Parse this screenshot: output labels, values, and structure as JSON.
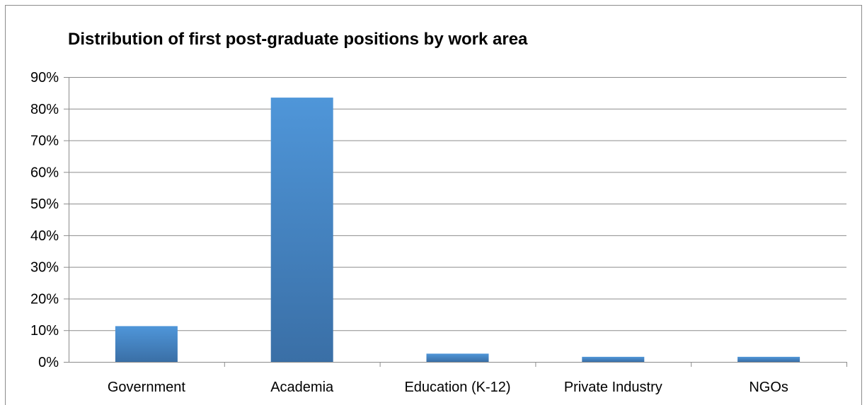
{
  "chart_data": {
    "type": "bar",
    "title": "Distribution of first post-graduate positions by work area",
    "xlabel": "",
    "ylabel": "",
    "categories": [
      "Government",
      "Academia",
      "Education (K-12)",
      "Private Industry",
      "NGOs"
    ],
    "values": [
      11.3,
      83.5,
      2.6,
      1.6,
      1.6
    ],
    "ylim": [
      0,
      90
    ],
    "yticks": [
      0,
      10,
      20,
      30,
      40,
      50,
      60,
      70,
      80,
      90
    ],
    "ytick_labels": [
      "0%",
      "10%",
      "20%",
      "30%",
      "40%",
      "50%",
      "60%",
      "70%",
      "80%",
      "90%"
    ],
    "grid": true,
    "legend": "none",
    "colors": {
      "bar_top": "#4f96d9",
      "bar_bottom": "#3a6fa6",
      "grid": "#8c8c8c",
      "axis": "#8c8c8c"
    }
  }
}
